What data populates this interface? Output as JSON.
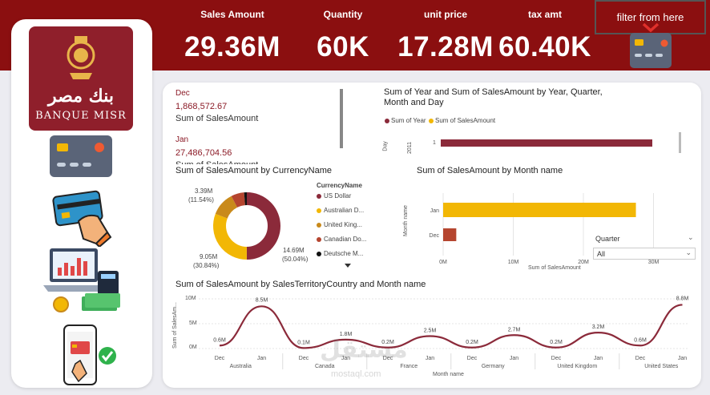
{
  "kpis": [
    {
      "label": "Sales Amount",
      "value": "29.36M"
    },
    {
      "label": "Quantity",
      "value": "60K"
    },
    {
      "label": "unit price",
      "value": "17.28M"
    },
    {
      "label": "tax amt",
      "value": "60.40K"
    }
  ],
  "filter": {
    "label": "filter from here"
  },
  "logo": {
    "arabic": "بنك مصر",
    "latin": "BANQUE MISR"
  },
  "colors": {
    "topbar": "#8b0f10",
    "maroon": "#8b2a3a",
    "gold": "#f2b705",
    "brown": "#c98a1b",
    "rust": "#b5452f",
    "black": "#111111"
  },
  "card_list": [
    {
      "month": "Dec",
      "value": "1,868,572.67",
      "metric": "Sum of SalesAmount"
    },
    {
      "month": "Jan",
      "value": "27,486,704.56",
      "metric": "Sum of SalesAmount"
    }
  ],
  "decomp_chart": {
    "title": "Sum of Year and Sum of SalesAmount by Year, Quarter, Month and Day",
    "legend": [
      "Sum of Year",
      "Sum of SalesAmount"
    ],
    "axis_label": "Day",
    "tick": "2011",
    "row_label": "1"
  },
  "donut": {
    "title": "Sum of SalesAmount by CurrencyName",
    "legend_title": "CurrencyName",
    "items": [
      "US Dollar",
      "Australian D...",
      "United King...",
      "Canadian Do...",
      "Deutsche M..."
    ],
    "labels": {
      "top_value": "3.39M",
      "top_pct": "(11.54%)",
      "left_value": "9.05M",
      "left_pct": "(30.84%)",
      "right_value": "14.69M",
      "right_pct": "(50.04%)"
    }
  },
  "bar_chart": {
    "title": "Sum of SalesAmount by Month name",
    "ylabel": "Month name",
    "xlabel": "Sum of SalesAmount",
    "x_ticks": [
      "0M",
      "10M",
      "20M",
      "30M"
    ]
  },
  "slicer": {
    "label": "Quarter",
    "value": "All"
  },
  "line_chart": {
    "title": "Sum of SalesAmount by SalesTerritoryCountry and Month name",
    "ylabel": "Sum of SalesAm...",
    "xlabel": "Month name",
    "y_ticks": [
      "10M",
      "5M",
      "0M"
    ]
  },
  "watermark": {
    "arabic": "مستقل",
    "latin": "mostaql.com"
  },
  "chart_data": [
    {
      "type": "pie",
      "title": "Sum of SalesAmount by CurrencyName",
      "categories": [
        "US Dollar",
        "Australian D...",
        "United King...",
        "Canadian Do...",
        "Deutsche M..."
      ],
      "values": [
        14.69,
        9.05,
        3.39,
        1.85,
        0.38
      ],
      "colors": [
        "#8b2a3a",
        "#f2b705",
        "#c98a1b",
        "#b5452f",
        "#111111"
      ]
    },
    {
      "type": "bar",
      "title": "Sum of SalesAmount by Month name",
      "categories": [
        "Jan",
        "Dec"
      ],
      "values": [
        27.49,
        1.87
      ],
      "xlim": [
        0,
        32
      ],
      "colors": [
        "#f2b705",
        "#b5452f"
      ]
    },
    {
      "type": "line",
      "title": "Sum of SalesAmount by SalesTerritoryCountry and Month name",
      "x": [
        "Dec",
        "Jan",
        "Dec",
        "Jan",
        "Dec",
        "Jan",
        "Dec",
        "Jan",
        "Dec",
        "Jan",
        "Dec",
        "Jan"
      ],
      "groups": [
        "Australia",
        "Canada",
        "France",
        "Germany",
        "United Kingdom",
        "United States"
      ],
      "values": [
        0.6,
        8.5,
        0.1,
        1.8,
        0.2,
        2.5,
        0.2,
        2.7,
        0.2,
        3.2,
        0.6,
        8.8
      ],
      "data_labels": [
        "0.6M",
        "8.5M",
        "0.1M",
        "1.8M",
        "0.2M",
        "2.5M",
        "0.2M",
        "2.7M",
        "0.2M",
        "3.2M",
        "0.6M",
        "8.8M"
      ],
      "ylim": [
        0,
        10
      ],
      "color": "#8b2a3a"
    }
  ]
}
